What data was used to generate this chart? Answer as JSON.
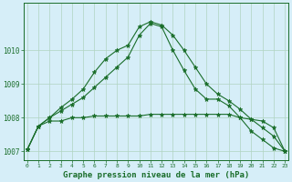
{
  "title": "Graphe pression niveau de la mer (hPa)",
  "background_color": "#d6eef8",
  "grid_color": "#b0d4c0",
  "line_color": "#1a6e2a",
  "x_hours": [
    0,
    1,
    2,
    3,
    4,
    5,
    6,
    7,
    8,
    9,
    10,
    11,
    12,
    13,
    14,
    15,
    16,
    17,
    18,
    19,
    20,
    21,
    22,
    23
  ],
  "line1": [
    1007.05,
    1007.75,
    1007.9,
    1007.9,
    1008.0,
    1008.0,
    1008.05,
    1008.05,
    1008.05,
    1008.05,
    1008.05,
    1008.1,
    1008.1,
    1008.1,
    1008.1,
    1008.1,
    1008.1,
    1008.1,
    1008.1,
    1008.0,
    1007.95,
    1007.9,
    1007.7,
    1007.0
  ],
  "line2": [
    1007.05,
    1007.75,
    1008.0,
    1008.3,
    1008.55,
    1008.85,
    1009.35,
    1009.75,
    1010.0,
    1010.15,
    1010.7,
    1010.85,
    1010.75,
    1010.45,
    1010.0,
    1009.5,
    1009.0,
    1008.7,
    1008.5,
    1008.25,
    1007.95,
    1007.7,
    1007.45,
    1007.0
  ],
  "line3": [
    1007.05,
    1007.75,
    1008.0,
    1008.2,
    1008.4,
    1008.6,
    1008.9,
    1009.2,
    1009.5,
    1009.8,
    1010.45,
    1010.8,
    1010.7,
    1010.0,
    1009.4,
    1008.85,
    1008.55,
    1008.55,
    1008.35,
    1008.0,
    1007.6,
    1007.35,
    1007.1,
    1007.0
  ],
  "ylim": [
    1006.75,
    1011.4
  ],
  "yticks": [
    1007,
    1008,
    1009,
    1010
  ],
  "xtick_labels": [
    "0",
    "1",
    "2",
    "3",
    "4",
    "5",
    "6",
    "7",
    "8",
    "9",
    "10",
    "11",
    "12",
    "13",
    "14",
    "15",
    "16",
    "17",
    "18",
    "19",
    "20",
    "21",
    "22",
    "23"
  ]
}
